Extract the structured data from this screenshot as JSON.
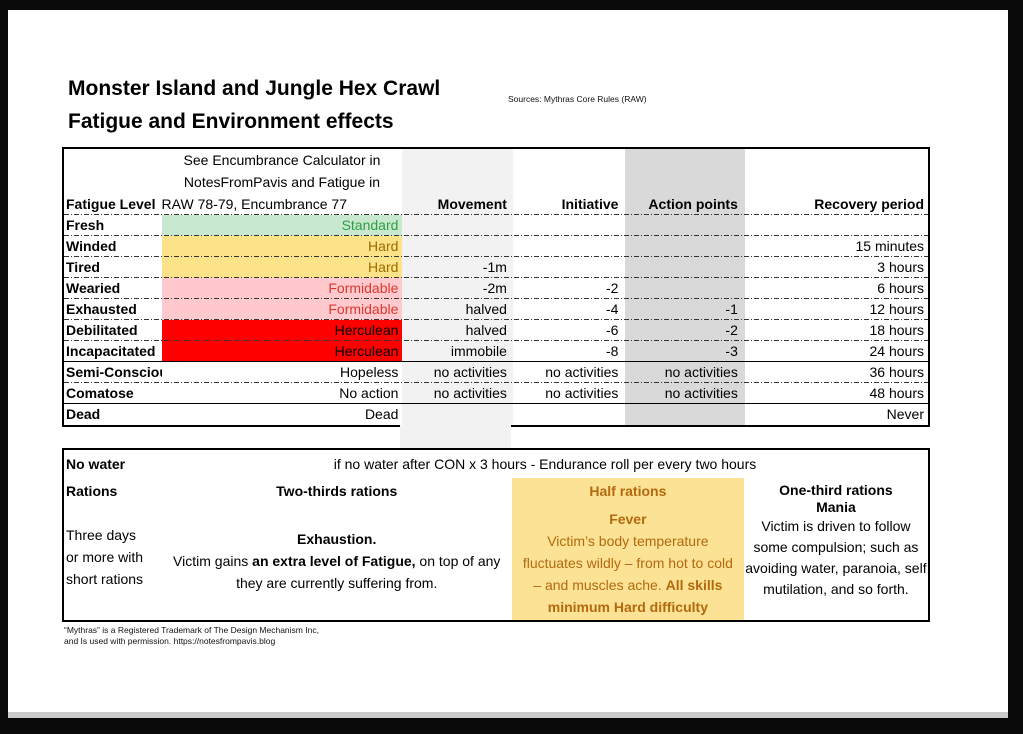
{
  "page": {
    "title_line1": "Monster Island and Jungle Hex Crawl",
    "title_line2": "Fatigue and Environment effects",
    "sources": "Sources: Mythras Core Rules (RAW)",
    "footnote_line1": "“Mythras” is a Registered Trademark of The Design Mechanism Inc,",
    "footnote_line2": "and Is used with permission. https://notesfrompavis.blog"
  },
  "fatigue_table": {
    "note_line1": "See Encumbrance Calculator in",
    "note_line2": "NotesFromPavis and Fatigue in",
    "note_line3": "RAW 78-79, Encumbrance 77",
    "headers": {
      "level": "Fatigue Level",
      "movement": "Movement",
      "initiative": "Initiative",
      "action_points": "Action points",
      "recovery": "Recovery period"
    },
    "rows": [
      {
        "level": "Fresh",
        "difficulty": "Standard",
        "movement": "",
        "initiative": "",
        "action_points": "",
        "recovery": "",
        "style": "good"
      },
      {
        "level": "Winded",
        "difficulty": "Hard",
        "movement": "",
        "initiative": "",
        "action_points": "",
        "recovery": "15 minutes",
        "style": "caution"
      },
      {
        "level": "Tired",
        "difficulty": "Hard",
        "movement": "-1m",
        "initiative": "",
        "action_points": "",
        "recovery": "3 hours",
        "style": "caution"
      },
      {
        "level": "Wearied",
        "difficulty": "Formidable",
        "movement": "-2m",
        "initiative": "-2",
        "action_points": "",
        "recovery": "6 hours",
        "style": "warn"
      },
      {
        "level": "Exhausted",
        "difficulty": "Formidable",
        "movement": "halved",
        "initiative": "-4",
        "action_points": "-1",
        "recovery": "12 hours",
        "style": "warn"
      },
      {
        "level": "Debilitated",
        "difficulty": "Herculean",
        "movement": "halved",
        "initiative": "-6",
        "action_points": "-2",
        "recovery": "18 hours",
        "style": "danger"
      },
      {
        "level": "Incapacitated",
        "difficulty": "Herculean",
        "movement": "immobile",
        "initiative": "-8",
        "action_points": "-3",
        "recovery": "24 hours",
        "style": "danger"
      },
      {
        "level": "Semi-Conscious",
        "difficulty": "Hopeless",
        "movement": "no activities",
        "initiative": "no activities",
        "action_points": "no activities",
        "recovery": "36 hours",
        "style": "plain"
      },
      {
        "level": "Comatose",
        "difficulty": "No action",
        "movement": "no activities",
        "initiative": "no activities",
        "action_points": "no activities",
        "recovery": "48 hours",
        "style": "plain"
      },
      {
        "level": "Dead",
        "difficulty": "Dead",
        "movement": "",
        "initiative": "",
        "action_points": "",
        "recovery": "Never",
        "style": "plain"
      }
    ]
  },
  "environment_table": {
    "no_water_label": "No water",
    "no_water_rule": "if no water after CON x 3 hours - Endurance roll per every two hours",
    "rations_label": "Rations",
    "two_thirds": {
      "header": "Two-thirds rations",
      "condition_lines": [
        "Three days",
        "or more with",
        "short rations"
      ],
      "effect_title": "Exhaustion.",
      "effect_pre": "Victim gains ",
      "effect_bold": "an extra level of Fatigue,",
      "effect_post": " on top of any they are currently suffering from."
    },
    "half": {
      "header": "Half rations",
      "effect_title": "Fever",
      "effect_pre": "Victim’s body temperature fluctuates wildly – from hot to cold – and muscles ache. ",
      "effect_bold": "All skills minimum Hard difficulty"
    },
    "one_third": {
      "header": "One-third rations",
      "effect_title": "Mania",
      "effect_body": "Victim is driven to follow some compulsion; such as avoiding water, paranoia, self mutilation, and so forth."
    }
  },
  "colors": {
    "good_bg": "#c8e9cf",
    "good_text": "#2f9e44",
    "caution_bg": "#fce289",
    "caution_text": "#9e6a00",
    "warn_bg": "#ffc9ce",
    "warn_text": "#dc372c",
    "danger_bg": "#fe0000",
    "danger_text": "#000000",
    "col_light": "#f2f2f2",
    "col_dark": "#d9d9d9",
    "rations_bg": "#fbe294",
    "rations_text": "#b4690e"
  }
}
